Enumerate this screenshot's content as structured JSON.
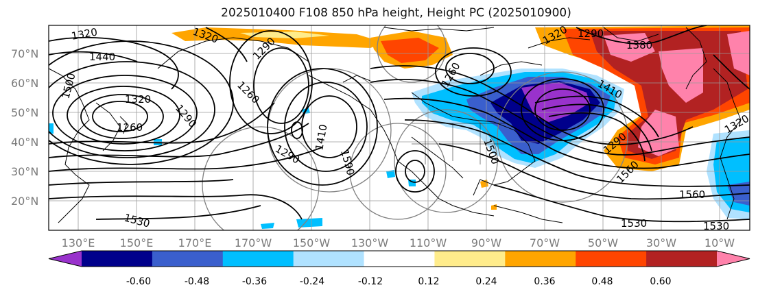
{
  "title": "2025010400 F108 850 hPa height, Height PC (2025010900)",
  "lat_labels": [
    "70°N",
    "60°N",
    "50°N",
    "40°N",
    "30°N",
    "20°N"
  ],
  "lon_labels": [
    "130°E",
    "150°E",
    "170°E",
    "170°W",
    "150°W",
    "130°W",
    "110°W",
    "90°W",
    "70°W",
    "50°W",
    "30°W",
    "10°W"
  ],
  "contour_labels": [
    "1320",
    "1320",
    "1440",
    "1380",
    "1290",
    "1320",
    "1290",
    "1260",
    "1260",
    "1290",
    "1320",
    "1260",
    "1500",
    "1290",
    "1410",
    "1590",
    "1500",
    "1560",
    "1560",
    "1530",
    "1530",
    "1530",
    "1410",
    "1290",
    "1320"
  ],
  "colorbar": {
    "tick_labels": [
      "-0.60",
      "-0.48",
      "-0.36",
      "-0.24",
      "-0.12",
      "0.12",
      "0.24",
      "0.36",
      "0.48",
      "0.60"
    ],
    "colors": [
      "#9932cc",
      "#00008b",
      "#3a5fcd",
      "#00bfff",
      "#b0e2ff",
      "#ffffff",
      "#ffec8b",
      "#ffa500",
      "#ff4500",
      "#b22222",
      "#ff82ab"
    ]
  }
}
